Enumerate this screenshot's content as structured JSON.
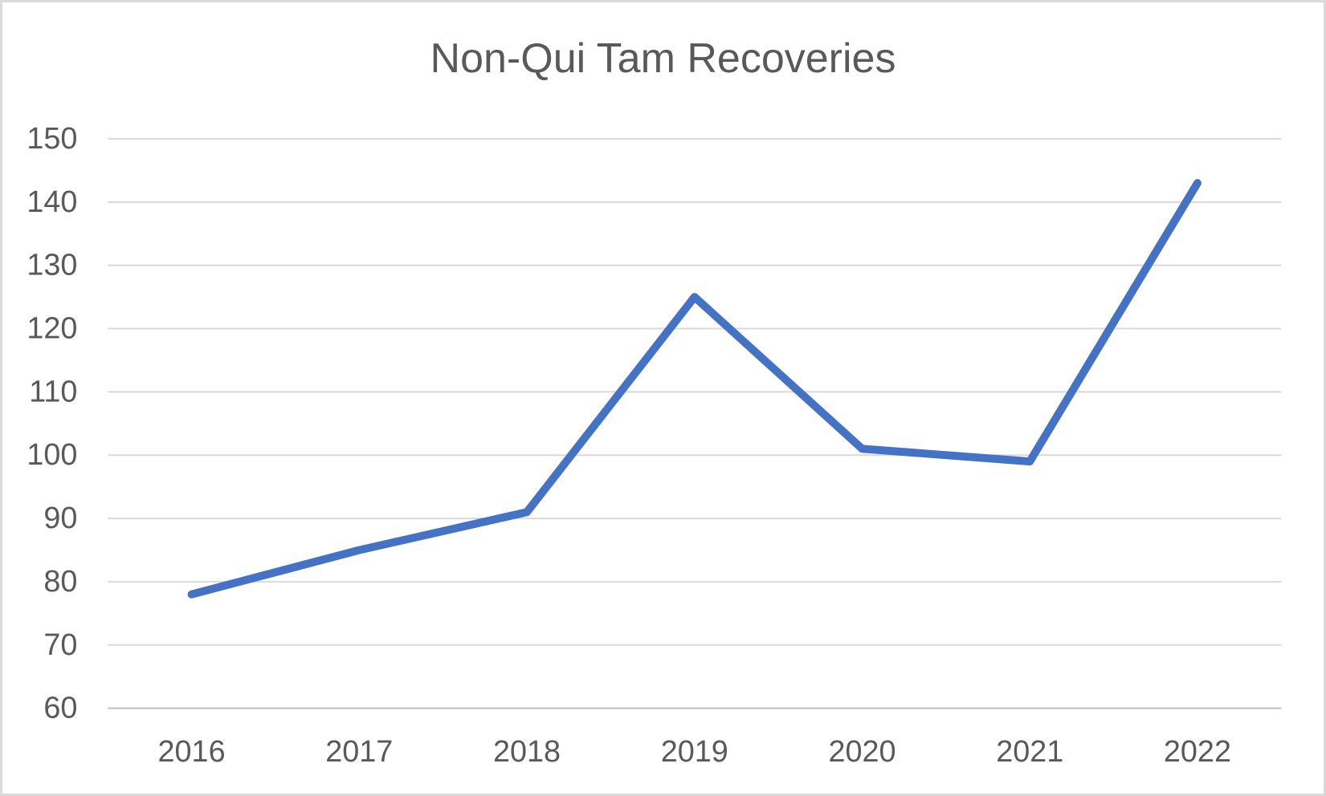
{
  "chart_data": {
    "type": "line",
    "title": "Non-Qui Tam Recoveries",
    "categories": [
      "2016",
      "2017",
      "2018",
      "2019",
      "2020",
      "2021",
      "2022"
    ],
    "series": [
      {
        "name": "Non-Qui Tam Recoveries",
        "values": [
          78,
          85,
          91,
          125,
          101,
          99,
          143
        ]
      }
    ],
    "xlabel": "",
    "ylabel": "",
    "ylim": [
      60,
      150
    ],
    "yticks": [
      60,
      70,
      80,
      90,
      100,
      110,
      120,
      130,
      140,
      150
    ],
    "grid": true,
    "legend_position": "none",
    "colors": {
      "line": "#4472C4",
      "gridline": "#d9d9d9",
      "axis_line": "#bfbfbf",
      "text": "#595959",
      "frame_border": "#d9d9d9",
      "background": "#ffffff"
    }
  }
}
